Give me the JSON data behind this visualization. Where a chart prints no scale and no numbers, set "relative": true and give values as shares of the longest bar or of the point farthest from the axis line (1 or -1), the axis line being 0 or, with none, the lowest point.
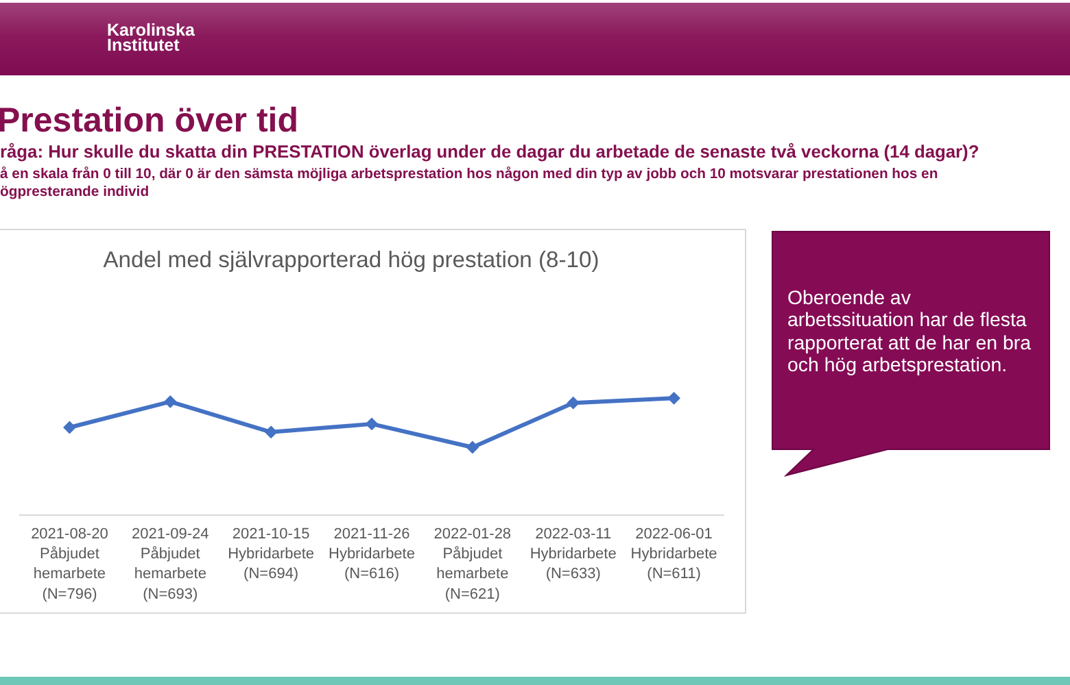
{
  "chart_data": {
    "type": "line",
    "title": "Andel med självrapporterad hög prestation (8-10)",
    "annotations": [
      "Karolinska Institutet",
      "Prestation över tid",
      "råga: Hur skulle du skatta din PRESTATION överlag under de dagar du arbetade de senaste två veckorna (14 dagar)?",
      "å en skala från 0 till 10, där 0 är den sämsta möjliga arbetsprestation hos någon med din typ av jobb och 10 motsvarar prestationen hos en\nögpresterande individ",
      "Oberoende av arbetssituation har de flesta rapporterat att de har en bra och hög arbetsprestation."
    ],
    "categories": [
      "2021-08-20\nPåbjudet\nhemarbete\n(N=796)",
      "2021-09-24\nPåbjudet\nhemarbete\n(N=693)",
      "2021-10-15\nHybridarbete\n(N=694)",
      "2021-11-26\nHybridarbete\n(N=616)",
      "2022-01-28\nPåbjudet\nhemarbete\n(N=621)",
      "2022-03-11\nHybridarbete\n(N=633)",
      "2022-06-01\nHybridarbete\n(N=611)"
    ],
    "values": [
      0.75,
      0.97,
      0.71,
      0.78,
      0.58,
      0.96,
      1
    ],
    "color": "#4472c4",
    "relative": true,
    "marker": "diamond"
  }
}
